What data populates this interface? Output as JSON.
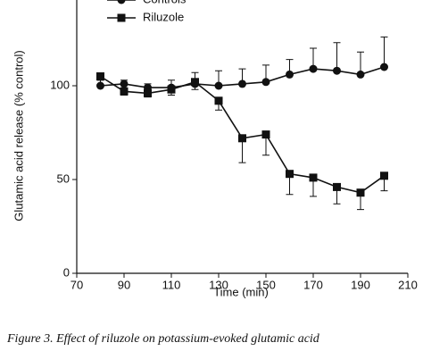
{
  "chart_data": {
    "type": "line",
    "x_label": "Time (min)",
    "y_label": "Glutamic acid release (% control)",
    "caption": "Figure 3. Effect of riluzole on potassium-evoked glutamic acid",
    "x": [
      80,
      90,
      100,
      110,
      120,
      130,
      140,
      150,
      160,
      170,
      180,
      190,
      200
    ],
    "series": [
      {
        "name": "Controls",
        "color": "#111111",
        "marker": "circle",
        "values": [
          100,
          101,
          99,
          99,
          101,
          100,
          101,
          102,
          106,
          109,
          108,
          106,
          110
        ],
        "errors": [
          3,
          2,
          2,
          4,
          6,
          8,
          8,
          9,
          8,
          11,
          15,
          12,
          16
        ],
        "error_direction": "up"
      },
      {
        "name": "Riluzole",
        "color": "#111111",
        "marker": "square",
        "values": [
          105,
          97,
          96,
          98,
          102,
          92,
          72,
          74,
          53,
          51,
          46,
          43,
          52
        ],
        "errors": [
          2,
          2,
          2,
          3,
          4,
          5,
          13,
          11,
          11,
          10,
          9,
          9,
          8
        ],
        "error_direction": "down"
      }
    ],
    "xlim": [
      70,
      210
    ],
    "xticks": [
      70,
      90,
      110,
      130,
      150,
      170,
      190,
      210
    ],
    "ylim": [
      0,
      150
    ],
    "yticks": [
      0,
      50,
      100,
      150
    ],
    "grid": false
  }
}
